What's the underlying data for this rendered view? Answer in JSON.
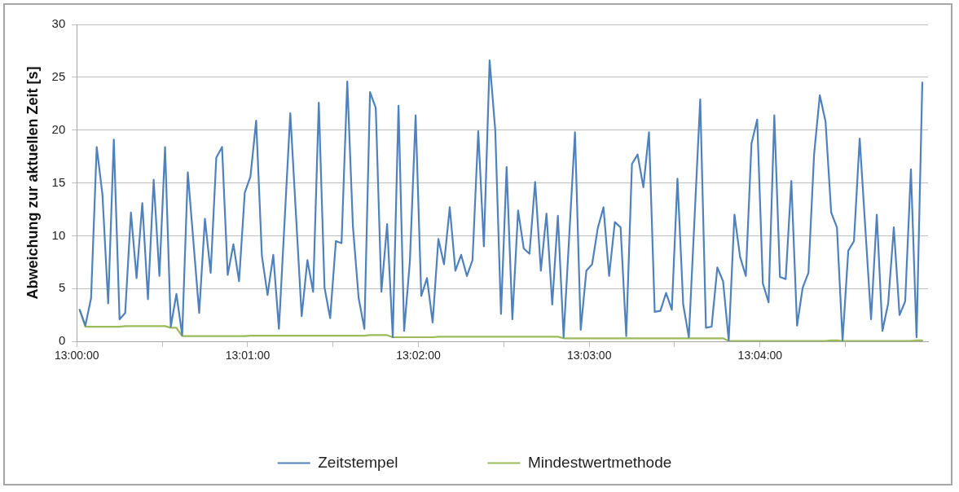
{
  "chart_data": {
    "type": "line",
    "ylabel": "Abweichung zur aktuellen Zeit [s]",
    "xlim": [
      13,
      13.08306
    ],
    "ylim": [
      0,
      30
    ],
    "xticks": [
      {
        "value": 13,
        "label": "13:00:00"
      },
      {
        "value": 13.00833,
        "label": null
      },
      {
        "value": 13.01667,
        "label": "13:01:00"
      },
      {
        "value": 13.025,
        "label": null
      },
      {
        "value": 13.03333,
        "label": "13:02:00"
      },
      {
        "value": 13.04167,
        "label": null
      },
      {
        "value": 13.05,
        "label": "13:03:00"
      },
      {
        "value": 13.05833,
        "label": null
      },
      {
        "value": 13.06667,
        "label": "13:04:00"
      },
      {
        "value": 13.075,
        "label": null
      }
    ],
    "yticks": [
      0,
      5,
      10,
      15,
      20,
      25,
      30
    ],
    "grid": "y",
    "legend": "bottom",
    "marker": "none",
    "line_style": "solid",
    "series": [
      {
        "name": "Zeitstempel",
        "color": "#4f81bd",
        "x": [
          13.00028,
          13.00083,
          13.00139,
          13.00194,
          13.0025,
          13.00306,
          13.00361,
          13.00417,
          13.00472,
          13.00528,
          13.00583,
          13.00639,
          13.00694,
          13.0075,
          13.00806,
          13.00861,
          13.00917,
          13.00972,
          13.01028,
          13.01083,
          13.01194,
          13.0125,
          13.01306,
          13.01361,
          13.01417,
          13.01472,
          13.01528,
          13.01583,
          13.01639,
          13.01694,
          13.0175,
          13.01806,
          13.01861,
          13.01917,
          13.01972,
          13.02083,
          13.02194,
          13.0225,
          13.02306,
          13.02361,
          13.02417,
          13.02472,
          13.02528,
          13.02583,
          13.02639,
          13.02694,
          13.0275,
          13.02806,
          13.02861,
          13.02917,
          13.02972,
          13.03028,
          13.03083,
          13.03139,
          13.03194,
          13.0325,
          13.03306,
          13.03361,
          13.03417,
          13.03472,
          13.03528,
          13.03583,
          13.03639,
          13.03694,
          13.0375,
          13.03806,
          13.03861,
          13.03917,
          13.03972,
          13.04028,
          13.04083,
          13.04139,
          13.04194,
          13.0425,
          13.04306,
          13.04361,
          13.04417,
          13.04472,
          13.04528,
          13.04583,
          13.04639,
          13.04694,
          13.0475,
          13.04861,
          13.04917,
          13.04972,
          13.05028,
          13.05083,
          13.05139,
          13.05194,
          13.0525,
          13.05306,
          13.05361,
          13.05417,
          13.05472,
          13.05528,
          13.05583,
          13.05639,
          13.05694,
          13.0575,
          13.05806,
          13.05861,
          13.05917,
          13.05972,
          13.06083,
          13.06139,
          13.06194,
          13.0625,
          13.06306,
          13.06361,
          13.06417,
          13.06472,
          13.06528,
          13.06583,
          13.06639,
          13.06694,
          13.0675,
          13.06806,
          13.06861,
          13.06917,
          13.06972,
          13.07028,
          13.07083,
          13.07139,
          13.07194,
          13.0725,
          13.07306,
          13.07361,
          13.07417,
          13.07472,
          13.07528,
          13.07583,
          13.07639,
          13.0775,
          13.07806,
          13.07861,
          13.07917,
          13.07972,
          13.08028,
          13.08083,
          13.08139,
          13.08194,
          13.0825
        ],
        "values": [
          3.0,
          1.5,
          4.1,
          18.4,
          13.9,
          3.6,
          19.1,
          2.1,
          2.7,
          12.2,
          6.0,
          13.1,
          4.0,
          15.3,
          6.2,
          18.4,
          1.4,
          4.5,
          0.6,
          16.0,
          2.7,
          11.6,
          6.5,
          17.4,
          18.4,
          6.3,
          9.2,
          5.7,
          14.1,
          15.6,
          20.9,
          8.1,
          4.4,
          8.2,
          1.2,
          21.6,
          2.4,
          7.7,
          4.7,
          22.6,
          5.1,
          2.2,
          9.5,
          9.3,
          24.6,
          10.9,
          4.1,
          1.2,
          23.6,
          22.1,
          4.7,
          11.1,
          0.4,
          22.3,
          1.0,
          7.6,
          21.4,
          4.3,
          6.0,
          1.8,
          9.7,
          7.3,
          12.7,
          6.7,
          8.2,
          6.2,
          7.7,
          19.9,
          9.0,
          26.6,
          20.0,
          2.6,
          16.5,
          2.1,
          12.4,
          8.8,
          8.3,
          15.1,
          6.7,
          12.1,
          3.5,
          11.9,
          0.4,
          19.8,
          1.1,
          6.7,
          7.3,
          10.7,
          12.7,
          6.2,
          11.3,
          10.8,
          0.5,
          16.8,
          17.7,
          14.6,
          19.8,
          2.8,
          2.9,
          4.6,
          3.0,
          15.4,
          3.5,
          0.4,
          22.9,
          1.3,
          1.4,
          7.0,
          5.7,
          0.1,
          12.0,
          8.0,
          6.2,
          18.7,
          21.0,
          5.5,
          3.7,
          21.4,
          6.1,
          5.9,
          15.2,
          1.5,
          5.1,
          6.5,
          17.7,
          23.3,
          20.8,
          12.2,
          10.8,
          0.1,
          8.6,
          9.5,
          19.2,
          2.1,
          12.0,
          1.0,
          3.6,
          10.8,
          2.5,
          3.8,
          16.3,
          0.4,
          24.5
        ]
      },
      {
        "name": "Mindestwertmethode",
        "color": "#9bbb59",
        "x": [
          13.00028,
          13.00083,
          13.00417,
          13.00472,
          13.00861,
          13.00917,
          13.00972,
          13.01028,
          13.01639,
          13.01694,
          13.02806,
          13.02861,
          13.03028,
          13.03083,
          13.03472,
          13.03528,
          13.04694,
          13.0475,
          13.06306,
          13.06361,
          13.07306,
          13.07361,
          13.07417,
          13.07472,
          13.08139,
          13.08194,
          13.0825
        ],
        "values": [
          3.0,
          1.4,
          1.4,
          1.45,
          1.45,
          1.3,
          1.3,
          0.5,
          0.5,
          0.55,
          0.55,
          0.6,
          0.6,
          0.4,
          0.4,
          0.45,
          0.45,
          0.3,
          0.3,
          0.05,
          0.05,
          0.1,
          0.1,
          0.05,
          0.05,
          0.1,
          0.1
        ]
      }
    ]
  }
}
